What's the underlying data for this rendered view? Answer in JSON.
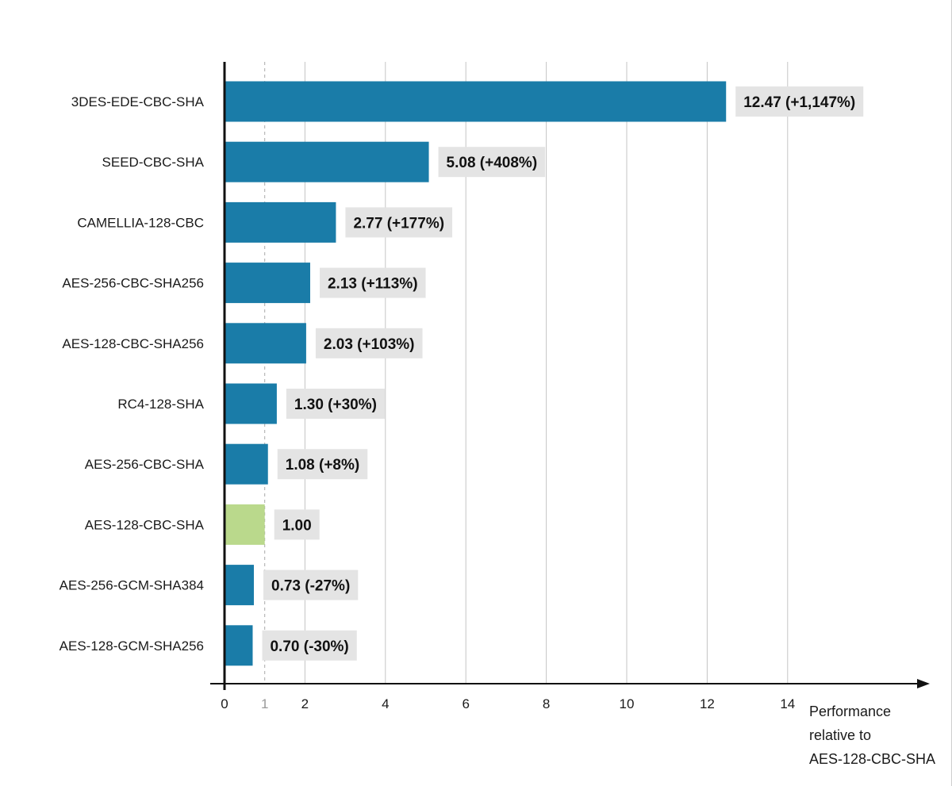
{
  "chart_data": {
    "type": "bar",
    "orientation": "horizontal",
    "categories": [
      "3DES-EDE-CBC-SHA",
      "SEED-CBC-SHA",
      "CAMELLIA-128-CBC",
      "AES-256-CBC-SHA256",
      "AES-128-CBC-SHA256",
      "RC4-128-SHA",
      "AES-256-CBC-SHA",
      "AES-128-CBC-SHA",
      "AES-256-GCM-SHA384",
      "AES-128-GCM-SHA256"
    ],
    "values": [
      12.47,
      5.08,
      2.77,
      2.13,
      2.03,
      1.3,
      1.08,
      1.0,
      0.73,
      0.7
    ],
    "data_labels": [
      "12.47 (+1,147%)",
      "5.08 (+408%)",
      "2.77 (+177%)",
      "2.13 (+113%)",
      "2.03 (+103%)",
      "1.30 (+30%)",
      "1.08 (+8%)",
      "1.00",
      "0.73 (-27%)",
      "0.70 (-30%)"
    ],
    "baseline_category": "AES-128-CBC-SHA",
    "xticks": [
      0,
      1,
      2,
      4,
      6,
      8,
      10,
      12,
      14
    ],
    "xtick_labels": [
      "0",
      "1",
      "2",
      "4",
      "6",
      "8",
      "10",
      "12",
      "14"
    ],
    "reference_tick": 1,
    "xlim": [
      0,
      17.4
    ],
    "xlabel": [
      "Performance",
      "relative to",
      "AES-128-CBC-SHA"
    ],
    "grid": "vertical",
    "colors": {
      "bar": "#1a7ca8",
      "baseline_bar": "#bad98c",
      "label_bg": "#e4e4e4",
      "grid": "#c4c4c4",
      "axis": "#111111",
      "reference_line": "#aaaaaa"
    }
  }
}
